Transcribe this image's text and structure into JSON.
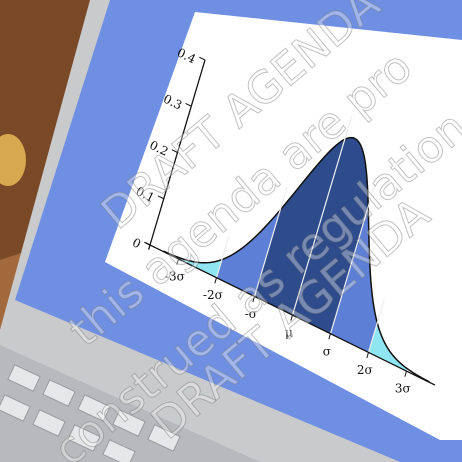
{
  "screen": {
    "y_labels": [
      "0.4",
      "0.3",
      "0.2",
      "0.1",
      "0"
    ],
    "x_labels": [
      "-3σ",
      "-2σ",
      "-σ",
      "μ",
      "σ",
      "2σ",
      "3σ"
    ]
  },
  "watermark": [
    "DRAFT AGENDA",
    "this agenda are pro",
    "construed as regulation",
    "DRAFT AGENDA"
  ]
}
